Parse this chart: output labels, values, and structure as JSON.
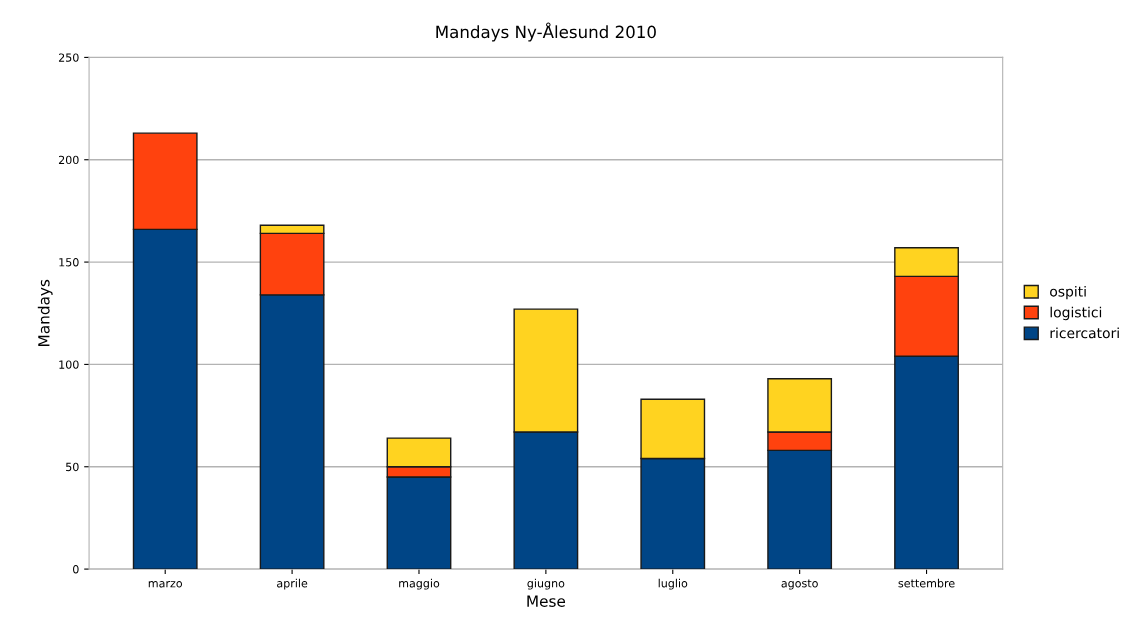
{
  "chart_data": {
    "type": "bar",
    "title": "Mandays Ny-Ålesund 2010",
    "xlabel": "Mese",
    "ylabel": "Mandays",
    "categories": [
      "marzo",
      "aprile",
      "maggio",
      "giugno",
      "luglio",
      "agosto",
      "settembre"
    ],
    "stacked": true,
    "series": [
      {
        "name": "ricercatori",
        "color": "#004586",
        "values": [
          166,
          134,
          45,
          67,
          54,
          58,
          104
        ]
      },
      {
        "name": "logistici",
        "color": "#ff420e",
        "values": [
          47,
          30,
          5,
          0,
          0,
          9,
          39
        ]
      },
      {
        "name": "ospiti",
        "color": "#ffd320",
        "values": [
          0,
          4,
          14,
          60,
          29,
          26,
          14
        ]
      }
    ],
    "ylim": [
      0,
      250
    ],
    "yticks": [
      0,
      50,
      100,
      150,
      200,
      250
    ],
    "grid": "y",
    "legend": "right"
  }
}
